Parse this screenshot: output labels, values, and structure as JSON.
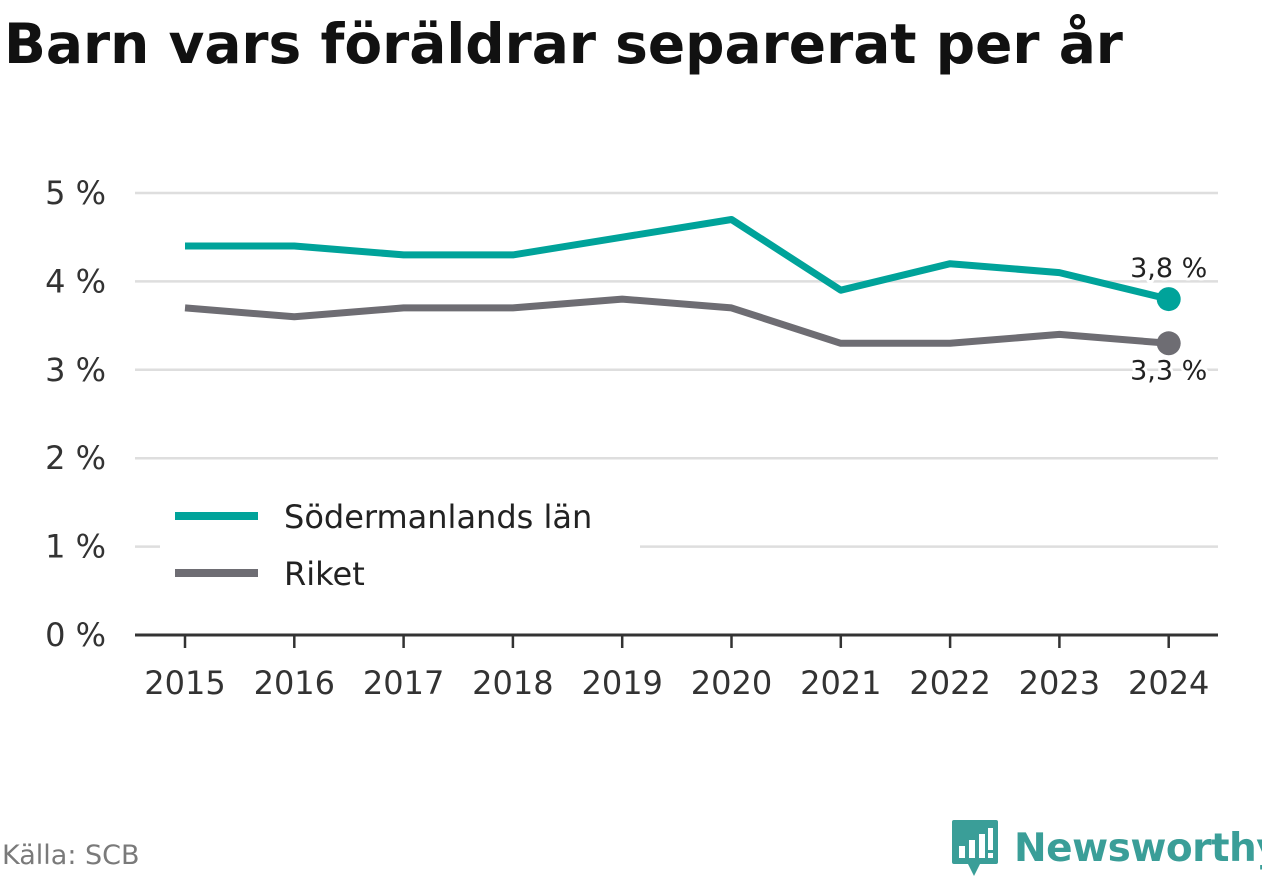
{
  "title": "Barn vars föräldrar separerat per år",
  "source": "Källa: SCB",
  "brand": {
    "name": "Newsworthy",
    "icon": "bar-chart-speech-bubble-icon",
    "color": "#3a9e98"
  },
  "chart_data": {
    "type": "line",
    "title": "Barn vars föräldrar separerat per år",
    "xlabel": "",
    "ylabel": "",
    "x": [
      2015,
      2016,
      2017,
      2018,
      2019,
      2020,
      2021,
      2022,
      2023,
      2024
    ],
    "x_tick_labels": [
      "2015",
      "2016",
      "2017",
      "2018",
      "2019",
      "2020",
      "2021",
      "2022",
      "2023",
      "2024"
    ],
    "ylim": [
      0,
      5
    ],
    "y_ticks": [
      0,
      1,
      2,
      3,
      4,
      5
    ],
    "y_tick_labels": [
      "0 %",
      "1 %",
      "2 %",
      "3 %",
      "4 %",
      "5 %"
    ],
    "grid": true,
    "legend_position": "bottom-left",
    "series": [
      {
        "name": "Södermanlands län",
        "color": "#00a39a",
        "values": [
          4.4,
          4.4,
          4.3,
          4.3,
          4.5,
          4.7,
          3.9,
          4.2,
          4.1,
          3.8
        ],
        "end_label": "3,8 %"
      },
      {
        "name": "Riket",
        "color": "#6e6d73",
        "values": [
          3.7,
          3.6,
          3.7,
          3.7,
          3.8,
          3.7,
          3.3,
          3.3,
          3.4,
          3.3
        ],
        "end_label": "3,3 %"
      }
    ]
  }
}
